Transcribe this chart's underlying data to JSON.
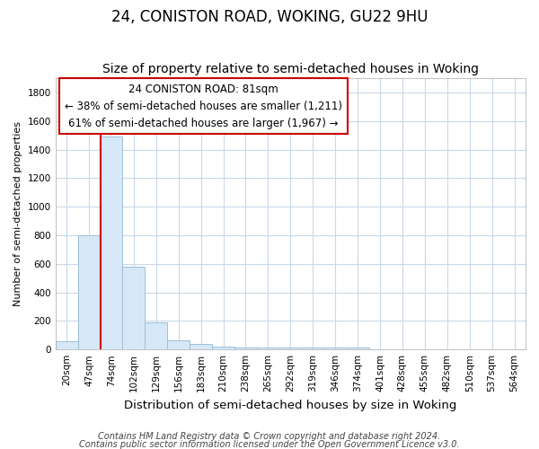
{
  "title": "24, CONISTON ROAD, WOKING, GU22 9HU",
  "subtitle": "Size of property relative to semi-detached houses in Woking",
  "xlabel": "Distribution of semi-detached houses by size in Woking",
  "ylabel": "Number of semi-detached properties",
  "footnote1": "Contains HM Land Registry data © Crown copyright and database right 2024.",
  "footnote2": "Contains public sector information licensed under the Open Government Licence v3.0.",
  "bar_labels": [
    "20sqm",
    "47sqm",
    "74sqm",
    "102sqm",
    "129sqm",
    "156sqm",
    "183sqm",
    "210sqm",
    "238sqm",
    "265sqm",
    "292sqm",
    "319sqm",
    "346sqm",
    "374sqm",
    "401sqm",
    "428sqm",
    "455sqm",
    "482sqm",
    "510sqm",
    "537sqm",
    "564sqm"
  ],
  "bar_values": [
    57,
    800,
    1490,
    578,
    192,
    65,
    42,
    20,
    16,
    16,
    16,
    16,
    16,
    15,
    0,
    0,
    0,
    0,
    0,
    0,
    0
  ],
  "bar_color": "#d6e8f7",
  "bar_edge_color": "#9bbfd8",
  "ylim": [
    0,
    1900
  ],
  "yticks": [
    0,
    200,
    400,
    600,
    800,
    1000,
    1200,
    1400,
    1600,
    1800
  ],
  "red_line_x": 2.0,
  "annotation_line1": "24 CONISTON ROAD: 81sqm",
  "annotation_line2": "← 38% of semi-detached houses are smaller (1,211)",
  "annotation_line3": "61% of semi-detached houses are larger (1,967) →",
  "annotation_color": "#cc0000",
  "grid_color": "#c8d8e8",
  "background_color": "#ffffff",
  "title_fontsize": 12,
  "subtitle_fontsize": 10,
  "tick_fontsize": 7.5,
  "ylabel_fontsize": 8,
  "xlabel_fontsize": 9.5,
  "annotation_fontsize": 8.5,
  "footnote_fontsize": 7
}
